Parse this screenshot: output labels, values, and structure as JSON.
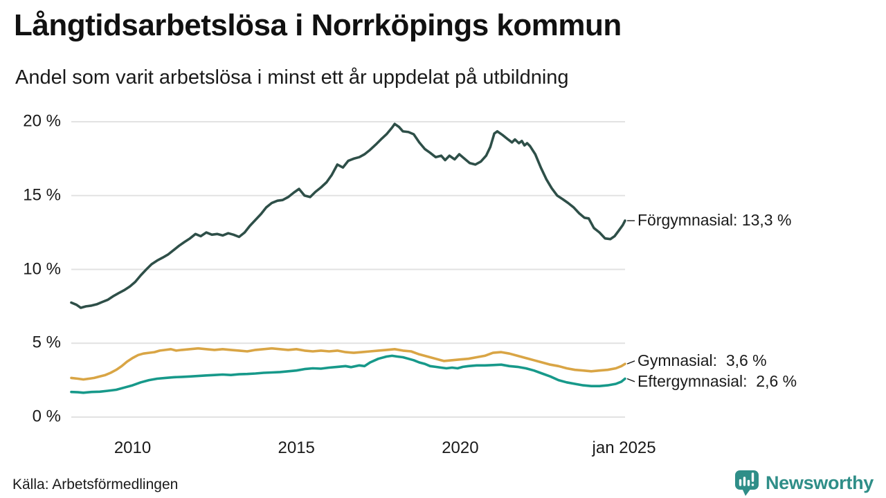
{
  "header": {
    "title": "Långtidsarbetslösa i Norrköpings kommun",
    "subtitle": "Andel som varit arbetslösa i minst ett år uppdelat på utbildning"
  },
  "source": {
    "label": "Källa: Arbetsförmedlingen"
  },
  "branding": {
    "name": "Newsworthy",
    "icon": "newsworthy-speech-bubble-bar-chart-icon",
    "color": "#2f8e88"
  },
  "colors": {
    "grid": "#e2e2e2",
    "text": "#1a1a1a",
    "connector": "#1a1a1a",
    "background": "#ffffff"
  },
  "chart_data": {
    "type": "line",
    "title": "Långtidsarbetslösa i Norrköpings kommun",
    "subtitle": "Andel som varit arbetslösa i minst ett år uppdelat på utbildning",
    "unit": "%",
    "grid": true,
    "legend_position": "right-end-labels",
    "x_axis": {
      "range": [
        2008.13,
        2025.03
      ],
      "ticks": [
        {
          "t": 2010,
          "label": "2010"
        },
        {
          "t": 2015,
          "label": "2015"
        },
        {
          "t": 2020,
          "label": "2020"
        },
        {
          "t": 2025.0,
          "label": "jan 2025"
        }
      ]
    },
    "y_axis": {
      "range": [
        0,
        20
      ],
      "ticks": [
        {
          "v": 20,
          "label": "20 %"
        },
        {
          "v": 15,
          "label": "15 %"
        },
        {
          "v": 10,
          "label": "10 %"
        },
        {
          "v": 5,
          "label": "5 %"
        },
        {
          "v": 0,
          "label": "0 %"
        }
      ]
    },
    "series": [
      {
        "name": "Förgymnasial",
        "color": "#2e4f48",
        "end_value": 13.3,
        "end_label": "Förgymnasial: 13,3 %",
        "points": [
          [
            2008.13,
            7.75
          ],
          [
            2008.29,
            7.6
          ],
          [
            2008.42,
            7.4
          ],
          [
            2008.58,
            7.5
          ],
          [
            2008.75,
            7.55
          ],
          [
            2008.92,
            7.65
          ],
          [
            2009.08,
            7.8
          ],
          [
            2009.25,
            7.95
          ],
          [
            2009.42,
            8.2
          ],
          [
            2009.58,
            8.4
          ],
          [
            2009.75,
            8.6
          ],
          [
            2009.92,
            8.85
          ],
          [
            2010.08,
            9.15
          ],
          [
            2010.25,
            9.6
          ],
          [
            2010.42,
            10.0
          ],
          [
            2010.58,
            10.35
          ],
          [
            2010.75,
            10.6
          ],
          [
            2010.92,
            10.8
          ],
          [
            2011.08,
            11.0
          ],
          [
            2011.25,
            11.3
          ],
          [
            2011.42,
            11.6
          ],
          [
            2011.58,
            11.85
          ],
          [
            2011.75,
            12.1
          ],
          [
            2011.92,
            12.4
          ],
          [
            2012.08,
            12.25
          ],
          [
            2012.25,
            12.5
          ],
          [
            2012.42,
            12.35
          ],
          [
            2012.58,
            12.4
          ],
          [
            2012.75,
            12.3
          ],
          [
            2012.92,
            12.45
          ],
          [
            2013.08,
            12.35
          ],
          [
            2013.25,
            12.2
          ],
          [
            2013.42,
            12.5
          ],
          [
            2013.58,
            12.95
          ],
          [
            2013.75,
            13.35
          ],
          [
            2013.92,
            13.75
          ],
          [
            2014.08,
            14.2
          ],
          [
            2014.25,
            14.5
          ],
          [
            2014.42,
            14.65
          ],
          [
            2014.58,
            14.7
          ],
          [
            2014.75,
            14.9
          ],
          [
            2014.92,
            15.2
          ],
          [
            2015.08,
            15.45
          ],
          [
            2015.25,
            15.0
          ],
          [
            2015.42,
            14.9
          ],
          [
            2015.58,
            15.25
          ],
          [
            2015.75,
            15.55
          ],
          [
            2015.92,
            15.9
          ],
          [
            2016.08,
            16.4
          ],
          [
            2016.25,
            17.1
          ],
          [
            2016.42,
            16.9
          ],
          [
            2016.58,
            17.35
          ],
          [
            2016.75,
            17.5
          ],
          [
            2016.92,
            17.6
          ],
          [
            2017.08,
            17.8
          ],
          [
            2017.25,
            18.1
          ],
          [
            2017.42,
            18.45
          ],
          [
            2017.58,
            18.8
          ],
          [
            2017.75,
            19.15
          ],
          [
            2017.92,
            19.6
          ],
          [
            2018.0,
            19.85
          ],
          [
            2018.13,
            19.65
          ],
          [
            2018.25,
            19.35
          ],
          [
            2018.42,
            19.3
          ],
          [
            2018.58,
            19.15
          ],
          [
            2018.75,
            18.6
          ],
          [
            2018.92,
            18.15
          ],
          [
            2019.08,
            17.9
          ],
          [
            2019.25,
            17.6
          ],
          [
            2019.42,
            17.7
          ],
          [
            2019.54,
            17.4
          ],
          [
            2019.67,
            17.7
          ],
          [
            2019.83,
            17.45
          ],
          [
            2019.97,
            17.8
          ],
          [
            2020.13,
            17.5
          ],
          [
            2020.29,
            17.2
          ],
          [
            2020.46,
            17.1
          ],
          [
            2020.63,
            17.3
          ],
          [
            2020.79,
            17.7
          ],
          [
            2020.92,
            18.3
          ],
          [
            2021.04,
            19.2
          ],
          [
            2021.13,
            19.35
          ],
          [
            2021.29,
            19.1
          ],
          [
            2021.46,
            18.8
          ],
          [
            2021.58,
            18.6
          ],
          [
            2021.67,
            18.8
          ],
          [
            2021.79,
            18.55
          ],
          [
            2021.88,
            18.7
          ],
          [
            2021.96,
            18.4
          ],
          [
            2022.04,
            18.55
          ],
          [
            2022.13,
            18.35
          ],
          [
            2022.29,
            17.8
          ],
          [
            2022.46,
            16.9
          ],
          [
            2022.63,
            16.1
          ],
          [
            2022.79,
            15.5
          ],
          [
            2022.96,
            15.0
          ],
          [
            2023.13,
            14.75
          ],
          [
            2023.29,
            14.5
          ],
          [
            2023.46,
            14.2
          ],
          [
            2023.63,
            13.8
          ],
          [
            2023.79,
            13.5
          ],
          [
            2023.92,
            13.45
          ],
          [
            2024.08,
            12.8
          ],
          [
            2024.25,
            12.5
          ],
          [
            2024.42,
            12.1
          ],
          [
            2024.58,
            12.05
          ],
          [
            2024.71,
            12.25
          ],
          [
            2024.83,
            12.6
          ],
          [
            2024.96,
            13.0
          ],
          [
            2025.03,
            13.3
          ]
        ]
      },
      {
        "name": "Gymnasial",
        "color": "#d9a545",
        "end_value": 3.6,
        "end_label": "Gymnasial:  3,6 %",
        "points": [
          [
            2008.13,
            2.65
          ],
          [
            2008.33,
            2.6
          ],
          [
            2008.5,
            2.55
          ],
          [
            2008.67,
            2.6
          ],
          [
            2008.83,
            2.65
          ],
          [
            2009.0,
            2.75
          ],
          [
            2009.17,
            2.85
          ],
          [
            2009.33,
            3.0
          ],
          [
            2009.5,
            3.2
          ],
          [
            2009.67,
            3.45
          ],
          [
            2009.83,
            3.75
          ],
          [
            2010.0,
            4.0
          ],
          [
            2010.17,
            4.2
          ],
          [
            2010.33,
            4.3
          ],
          [
            2010.5,
            4.35
          ],
          [
            2010.67,
            4.4
          ],
          [
            2010.83,
            4.5
          ],
          [
            2011.0,
            4.55
          ],
          [
            2011.17,
            4.6
          ],
          [
            2011.33,
            4.5
          ],
          [
            2011.5,
            4.55
          ],
          [
            2011.75,
            4.6
          ],
          [
            2012.0,
            4.65
          ],
          [
            2012.25,
            4.6
          ],
          [
            2012.5,
            4.55
          ],
          [
            2012.75,
            4.6
          ],
          [
            2013.0,
            4.55
          ],
          [
            2013.25,
            4.5
          ],
          [
            2013.5,
            4.45
          ],
          [
            2013.75,
            4.55
          ],
          [
            2014.0,
            4.6
          ],
          [
            2014.25,
            4.65
          ],
          [
            2014.5,
            4.6
          ],
          [
            2014.75,
            4.55
          ],
          [
            2015.0,
            4.6
          ],
          [
            2015.25,
            4.5
          ],
          [
            2015.5,
            4.45
          ],
          [
            2015.75,
            4.5
          ],
          [
            2016.0,
            4.45
          ],
          [
            2016.25,
            4.5
          ],
          [
            2016.5,
            4.4
          ],
          [
            2016.75,
            4.35
          ],
          [
            2017.0,
            4.4
          ],
          [
            2017.25,
            4.45
          ],
          [
            2017.5,
            4.5
          ],
          [
            2017.75,
            4.55
          ],
          [
            2018.0,
            4.6
          ],
          [
            2018.25,
            4.5
          ],
          [
            2018.5,
            4.45
          ],
          [
            2018.75,
            4.25
          ],
          [
            2019.0,
            4.1
          ],
          [
            2019.25,
            3.95
          ],
          [
            2019.5,
            3.8
          ],
          [
            2019.75,
            3.85
          ],
          [
            2020.0,
            3.9
          ],
          [
            2020.25,
            3.95
          ],
          [
            2020.5,
            4.05
          ],
          [
            2020.75,
            4.15
          ],
          [
            2021.0,
            4.35
          ],
          [
            2021.25,
            4.4
          ],
          [
            2021.5,
            4.3
          ],
          [
            2021.75,
            4.15
          ],
          [
            2022.0,
            4.0
          ],
          [
            2022.25,
            3.85
          ],
          [
            2022.5,
            3.7
          ],
          [
            2022.75,
            3.55
          ],
          [
            2023.0,
            3.45
          ],
          [
            2023.25,
            3.3
          ],
          [
            2023.5,
            3.2
          ],
          [
            2023.75,
            3.15
          ],
          [
            2024.0,
            3.1
          ],
          [
            2024.25,
            3.15
          ],
          [
            2024.5,
            3.2
          ],
          [
            2024.75,
            3.3
          ],
          [
            2024.92,
            3.45
          ],
          [
            2025.03,
            3.6
          ]
        ]
      },
      {
        "name": "Eftergymnasial",
        "color": "#17998a",
        "end_value": 2.6,
        "end_label": "Eftergymnasial:  2,6 %",
        "points": [
          [
            2008.13,
            1.7
          ],
          [
            2008.33,
            1.68
          ],
          [
            2008.5,
            1.65
          ],
          [
            2008.75,
            1.7
          ],
          [
            2009.0,
            1.72
          ],
          [
            2009.25,
            1.78
          ],
          [
            2009.5,
            1.85
          ],
          [
            2009.75,
            2.0
          ],
          [
            2010.0,
            2.15
          ],
          [
            2010.25,
            2.35
          ],
          [
            2010.5,
            2.5
          ],
          [
            2010.75,
            2.6
          ],
          [
            2011.0,
            2.65
          ],
          [
            2011.25,
            2.7
          ],
          [
            2011.5,
            2.72
          ],
          [
            2011.75,
            2.75
          ],
          [
            2012.0,
            2.78
          ],
          [
            2012.25,
            2.82
          ],
          [
            2012.5,
            2.85
          ],
          [
            2012.75,
            2.88
          ],
          [
            2013.0,
            2.85
          ],
          [
            2013.25,
            2.9
          ],
          [
            2013.5,
            2.92
          ],
          [
            2013.75,
            2.95
          ],
          [
            2014.0,
            3.0
          ],
          [
            2014.25,
            3.02
          ],
          [
            2014.5,
            3.05
          ],
          [
            2014.75,
            3.1
          ],
          [
            2015.0,
            3.15
          ],
          [
            2015.25,
            3.25
          ],
          [
            2015.5,
            3.3
          ],
          [
            2015.75,
            3.28
          ],
          [
            2016.0,
            3.35
          ],
          [
            2016.25,
            3.4
          ],
          [
            2016.5,
            3.45
          ],
          [
            2016.67,
            3.38
          ],
          [
            2016.92,
            3.5
          ],
          [
            2017.08,
            3.45
          ],
          [
            2017.25,
            3.7
          ],
          [
            2017.5,
            3.95
          ],
          [
            2017.75,
            4.1
          ],
          [
            2017.92,
            4.15
          ],
          [
            2018.08,
            4.1
          ],
          [
            2018.25,
            4.05
          ],
          [
            2018.42,
            3.95
          ],
          [
            2018.58,
            3.85
          ],
          [
            2018.75,
            3.7
          ],
          [
            2018.92,
            3.6
          ],
          [
            2019.08,
            3.45
          ],
          [
            2019.25,
            3.4
          ],
          [
            2019.42,
            3.35
          ],
          [
            2019.58,
            3.3
          ],
          [
            2019.75,
            3.35
          ],
          [
            2019.92,
            3.3
          ],
          [
            2020.08,
            3.4
          ],
          [
            2020.25,
            3.45
          ],
          [
            2020.5,
            3.5
          ],
          [
            2020.75,
            3.5
          ],
          [
            2021.0,
            3.52
          ],
          [
            2021.25,
            3.55
          ],
          [
            2021.5,
            3.45
          ],
          [
            2021.75,
            3.4
          ],
          [
            2022.0,
            3.3
          ],
          [
            2022.25,
            3.15
          ],
          [
            2022.5,
            2.95
          ],
          [
            2022.75,
            2.75
          ],
          [
            2023.0,
            2.5
          ],
          [
            2023.25,
            2.35
          ],
          [
            2023.5,
            2.25
          ],
          [
            2023.75,
            2.15
          ],
          [
            2024.0,
            2.1
          ],
          [
            2024.25,
            2.1
          ],
          [
            2024.5,
            2.15
          ],
          [
            2024.75,
            2.25
          ],
          [
            2024.92,
            2.4
          ],
          [
            2025.03,
            2.6
          ]
        ]
      }
    ]
  }
}
